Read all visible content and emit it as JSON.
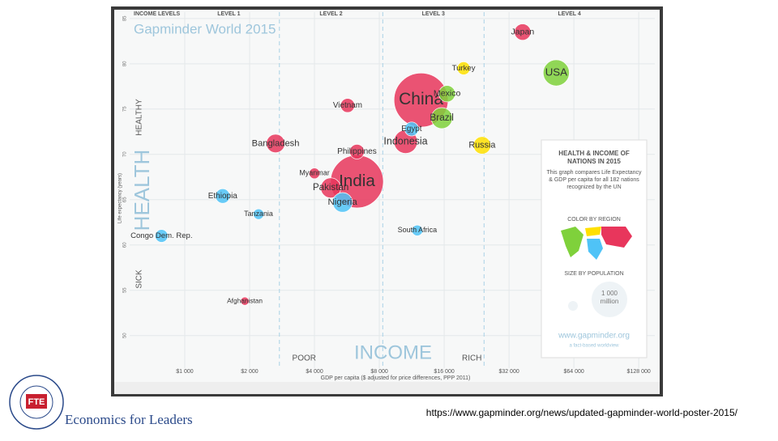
{
  "chart_data": {
    "type": "bubble",
    "title": "Gapminder World 2015",
    "level_header": "INCOME LEVELS",
    "levels": [
      "LEVEL 1",
      "LEVEL 2",
      "LEVEL 3",
      "LEVEL 4"
    ],
    "level_bounds": [
      2750,
      8300,
      24500
    ],
    "x_label": "INCOME",
    "x_label_left": "POOR",
    "x_label_right": "RICH",
    "x_sublabel": "GDP per capita ($ adjusted for price differences, PPP 2011)",
    "y_label": "HEALTH",
    "y_label_low": "SICK",
    "y_label_high": "HEALTHY",
    "y_sublabel": "Life expectancy (years)",
    "log_x": true,
    "grid": true,
    "xlim": [
      555,
      152000
    ],
    "ylim": [
      46.4,
      85.7
    ],
    "xticks": [
      {
        "value": 1000,
        "label": "$1 000"
      },
      {
        "value": 2000,
        "label": "$2 000"
      },
      {
        "value": 4000,
        "label": "$4 000"
      },
      {
        "value": 8000,
        "label": "$8 000"
      },
      {
        "value": 16000,
        "label": "$16 000"
      },
      {
        "value": 32000,
        "label": "$32 000"
      },
      {
        "value": 64000,
        "label": "$64 000"
      },
      {
        "value": 128000,
        "label": "$128 000"
      }
    ],
    "yticks": [
      50,
      55,
      60,
      65,
      70,
      75,
      80,
      85
    ],
    "series": [
      {
        "color": "#e8365c",
        "labels": [
          "China",
          "India",
          "Indonesia",
          "Pakistan",
          "Bangladesh",
          "Vietnam",
          "Philippines",
          "Myanmar",
          "Afghanistan",
          "Japan"
        ],
        "x": [
          12500,
          6300,
          10600,
          4760,
          2640,
          5700,
          6300,
          4000,
          1900,
          37000
        ],
        "values": [
          76,
          67,
          71.4,
          66.3,
          71.2,
          75.4,
          70.3,
          67.9,
          53.8,
          83.5
        ],
        "sizes": [
          1376,
          1311,
          258,
          189,
          161,
          93,
          101,
          54,
          33,
          127
        ]
      },
      {
        "color": "#4fc3f7",
        "labels": [
          "Nigeria",
          "Ethiopia",
          "Egypt",
          "South Africa",
          "Congo Dem. Rep.",
          "Tanzania"
        ],
        "x": [
          5400,
          1500,
          11300,
          12000,
          780,
          2200
        ],
        "values": [
          64.7,
          65.4,
          72.8,
          61.6,
          61,
          63.4
        ],
        "sizes": [
          182,
          99,
          92,
          55,
          77,
          53
        ]
      },
      {
        "color": "#7fd13b",
        "labels": [
          "USA",
          "Brazil",
          "Mexico"
        ],
        "x": [
          53000,
          15600,
          16500
        ],
        "values": [
          79,
          74,
          76.7
        ],
        "sizes": [
          322,
          208,
          127
        ]
      },
      {
        "color": "#ffe000",
        "labels": [
          "Russia",
          "Turkey"
        ],
        "x": [
          24000,
          19700
        ],
        "values": [
          71,
          79.5
        ],
        "sizes": [
          143,
          79
        ]
      }
    ],
    "sidebar": {
      "heading": "HEALTH & INCOME OF NATIONS IN 2015",
      "text": "This graph compares Life Expectancy & GDP per capita for all 182 nations recognized by the UN",
      "color_heading": "COLOR BY REGION",
      "size_heading": "SIZE BY POPULATION",
      "size_big": "1 000 million",
      "url": "www.gapminder.org",
      "tagline": "a fact-based worldview"
    }
  },
  "footer": {
    "logo": "FTE",
    "brand": "Economics for Leaders",
    "source": "https://www.gapminder.org/news/updated-gapminder-world-poster-2015/"
  }
}
